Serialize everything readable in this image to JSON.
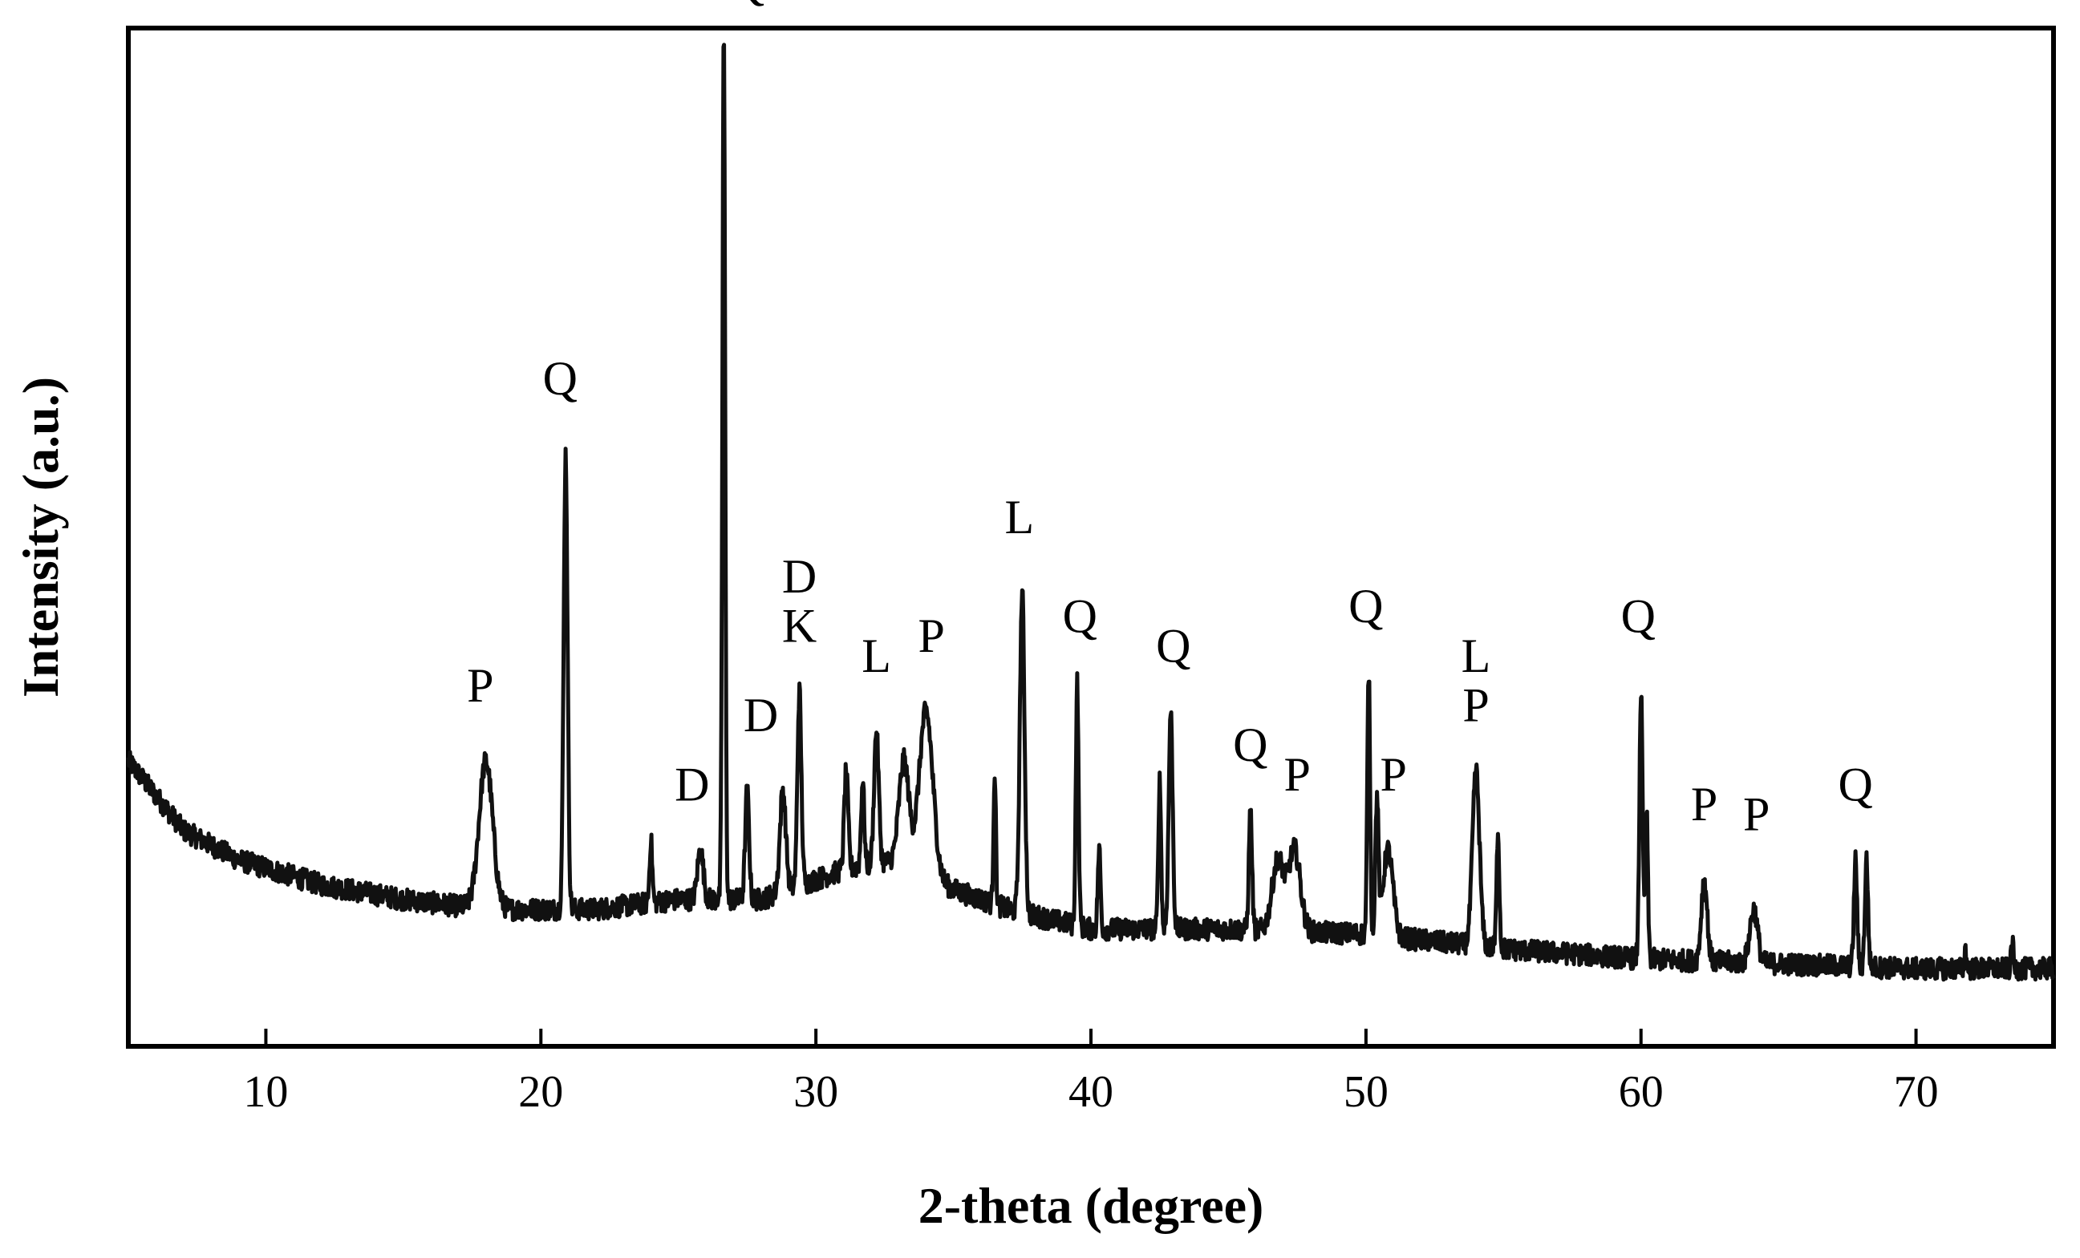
{
  "chart_data": {
    "type": "line",
    "title": "",
    "xlabel": "2-theta (degree)",
    "ylabel": "Intensity (a.u.)",
    "xlim": [
      5,
      75
    ],
    "ylim": [
      0,
      100
    ],
    "x_ticks": [
      10,
      20,
      30,
      40,
      50,
      60,
      70
    ],
    "x_tick_labels": [
      "10",
      "20",
      "30",
      "40",
      "50",
      "60",
      "70"
    ],
    "y_ticks": [],
    "grid": false,
    "legend": "none",
    "line_color": "#111111",
    "series": [
      {
        "baseline": [
          [
            5,
            26
          ],
          [
            7,
            19
          ],
          [
            9,
            16
          ],
          [
            12,
            13.5
          ],
          [
            15,
            12
          ],
          [
            18,
            11
          ],
          [
            22,
            11
          ],
          [
            25,
            12
          ],
          [
            28,
            12
          ],
          [
            31,
            15
          ],
          [
            33,
            16
          ],
          [
            35,
            13
          ],
          [
            37,
            11
          ],
          [
            40,
            9
          ],
          [
            45,
            9
          ],
          [
            50,
            8.5
          ],
          [
            55,
            7
          ],
          [
            60,
            6
          ],
          [
            65,
            5.5
          ],
          [
            70,
            5
          ],
          [
            75,
            5
          ]
        ],
        "peaks": [
          {
            "x": 18.0,
            "y": 26,
            "w": 0.35
          },
          {
            "x": 20.9,
            "y": 57,
            "w": 0.1
          },
          {
            "x": 24.0,
            "y": 18,
            "w": 0.07
          },
          {
            "x": 25.8,
            "y": 17,
            "w": 0.15
          },
          {
            "x": 26.65,
            "y": 100,
            "w": 0.07
          },
          {
            "x": 27.5,
            "y": 23,
            "w": 0.1
          },
          {
            "x": 28.8,
            "y": 23,
            "w": 0.15
          },
          {
            "x": 29.4,
            "y": 33,
            "w": 0.1
          },
          {
            "x": 31.1,
            "y": 25,
            "w": 0.1
          },
          {
            "x": 31.7,
            "y": 24,
            "w": 0.08
          },
          {
            "x": 32.2,
            "y": 29,
            "w": 0.12
          },
          {
            "x": 33.2,
            "y": 26,
            "w": 0.25
          },
          {
            "x": 34.0,
            "y": 31,
            "w": 0.35
          },
          {
            "x": 36.5,
            "y": 25,
            "w": 0.06
          },
          {
            "x": 37.5,
            "y": 43,
            "w": 0.12
          },
          {
            "x": 39.5,
            "y": 34,
            "w": 0.07
          },
          {
            "x": 40.3,
            "y": 17,
            "w": 0.07
          },
          {
            "x": 42.5,
            "y": 24,
            "w": 0.07
          },
          {
            "x": 42.9,
            "y": 31,
            "w": 0.1
          },
          {
            "x": 45.8,
            "y": 21,
            "w": 0.08
          },
          {
            "x": 46.8,
            "y": 16,
            "w": 0.3
          },
          {
            "x": 47.4,
            "y": 17,
            "w": 0.3
          },
          {
            "x": 50.1,
            "y": 35,
            "w": 0.07
          },
          {
            "x": 50.4,
            "y": 22,
            "w": 0.08
          },
          {
            "x": 50.8,
            "y": 17,
            "w": 0.25
          },
          {
            "x": 54.0,
            "y": 25,
            "w": 0.18
          },
          {
            "x": 54.8,
            "y": 19,
            "w": 0.07
          },
          {
            "x": 60.0,
            "y": 33,
            "w": 0.08
          },
          {
            "x": 60.2,
            "y": 21,
            "w": 0.07
          },
          {
            "x": 62.3,
            "y": 14,
            "w": 0.15
          },
          {
            "x": 64.1,
            "y": 11,
            "w": 0.2
          },
          {
            "x": 67.8,
            "y": 16,
            "w": 0.08
          },
          {
            "x": 68.2,
            "y": 16,
            "w": 0.08
          },
          {
            "x": 71.8,
            "y": 7,
            "w": 0.05
          },
          {
            "x": 73.5,
            "y": 8,
            "w": 0.05
          }
        ]
      }
    ],
    "annotations": [
      {
        "text": "P",
        "x": 17.8,
        "y": 32
      },
      {
        "text": "Q",
        "x": 20.7,
        "y": 63
      },
      {
        "text": "D",
        "x": 25.5,
        "y": 22
      },
      {
        "text": "Q",
        "x": 27.5,
        "y": 103
      },
      {
        "text": "D",
        "x": 28.0,
        "y": 29
      },
      {
        "text": "K",
        "x": 29.4,
        "y": 38
      },
      {
        "text": "D",
        "x": 29.4,
        "y": 43
      },
      {
        "text": "L",
        "x": 32.2,
        "y": 35
      },
      {
        "text": "P",
        "x": 34.2,
        "y": 37
      },
      {
        "text": "L",
        "x": 37.4,
        "y": 49
      },
      {
        "text": "Q",
        "x": 39.6,
        "y": 39
      },
      {
        "text": "Q",
        "x": 43.0,
        "y": 36
      },
      {
        "text": "Q",
        "x": 45.8,
        "y": 26
      },
      {
        "text": "P",
        "x": 47.5,
        "y": 23
      },
      {
        "text": "Q",
        "x": 50.0,
        "y": 40
      },
      {
        "text": "P",
        "x": 51.0,
        "y": 23
      },
      {
        "text": "P",
        "x": 54.0,
        "y": 30
      },
      {
        "text": "L",
        "x": 54.0,
        "y": 35
      },
      {
        "text": "Q",
        "x": 59.9,
        "y": 39
      },
      {
        "text": "P",
        "x": 62.3,
        "y": 20
      },
      {
        "text": "P",
        "x": 64.2,
        "y": 19
      },
      {
        "text": "Q",
        "x": 67.8,
        "y": 22
      }
    ]
  }
}
